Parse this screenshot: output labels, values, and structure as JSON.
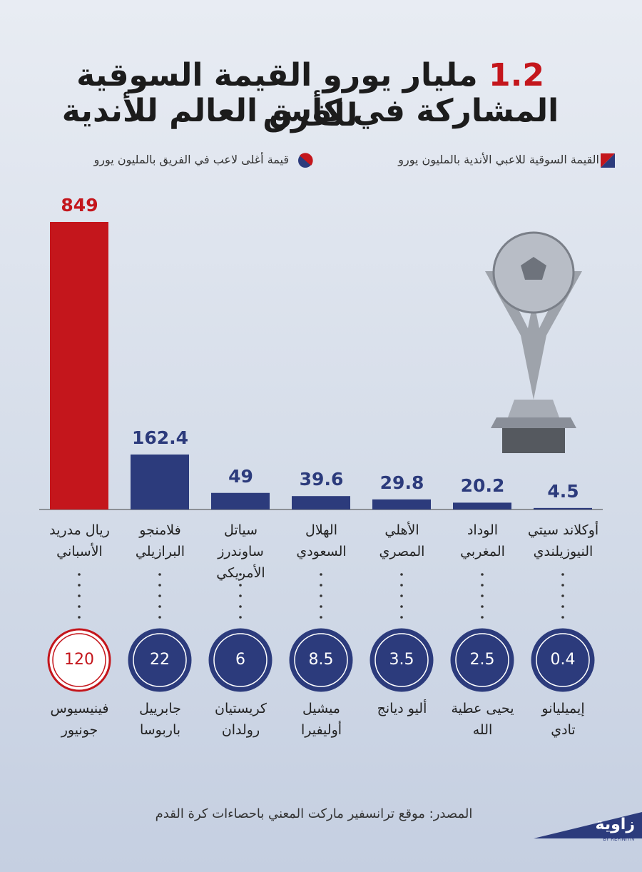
{
  "chart_data": {
    "type": "bar",
    "title_number": "1.2",
    "title_lines": [
      "مليار يورو القيمة السوقية للفرق",
      "المشاركة في كأس العالم للأندية"
    ],
    "categories": [
      "ريال مدريد\nالأسباني",
      "فلامنجو\nالبرازيلي",
      "سياتل ساوندرز\nالأمريكي",
      "الهلال\nالسعودي",
      "الأهلي\nالمصري",
      "الوداد\nالمغربي",
      "أوكلاند  سيتي\nالنيوزيلندي"
    ],
    "ylim": [
      0,
      849
    ],
    "series": [
      {
        "name": "القيمة السوقية للاعبي الأندية  بالمليون يورو",
        "colors": [
          "#c4161c",
          "#2c3b7c",
          "#2c3b7c",
          "#2c3b7c",
          "#2c3b7c",
          "#2c3b7c",
          "#2c3b7c"
        ],
        "values": [
          849,
          162.4,
          49,
          39.6,
          29.8,
          20.2,
          4.5
        ]
      },
      {
        "name": "قيمة أغلى لاعب في الفريق بالمليون يورو",
        "colors": [
          "#c4161c",
          "#2c3b7c",
          "#2c3b7c",
          "#2c3b7c",
          "#2c3b7c",
          "#2c3b7c",
          "#2c3b7c"
        ],
        "players": [
          "فينيسيوس\nجونيور",
          "جابرييل\nباربوسا",
          "كريستيان\nرولدان",
          "ميشيل\nأوليفيرا",
          "أليو ديانج",
          "يحيى عطية\nالله",
          "إيميليانو\nتادي"
        ],
        "values": [
          120,
          22,
          6,
          8.5,
          3.5,
          2.5,
          0.4
        ]
      }
    ],
    "source": "المصدر: موقع ترانسفير ماركت المعني باحصاءات كرة القدم",
    "logo": "زاوية",
    "logo_sub": "BY REFINITIV"
  }
}
